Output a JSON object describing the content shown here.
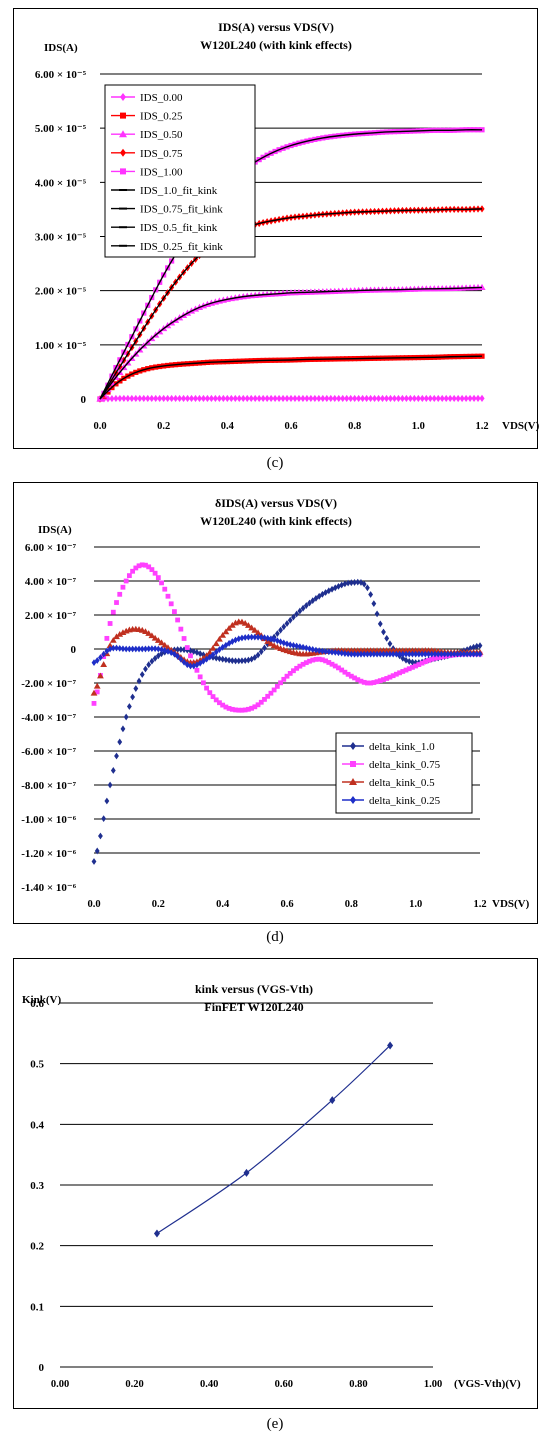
{
  "chart_data": [
    {
      "type": "line",
      "panel": "c",
      "title_line1": "IDS(A) versus VDS(V)",
      "title_line2": "W120L240 (with kink effects)",
      "ylabel": "IDS(A)",
      "xlabel": "VDS(V)",
      "x_ticks": [
        "0.0",
        "0.2",
        "0.4",
        "0.6",
        "0.8",
        "1.0",
        "1.2"
      ],
      "y_ticks": [
        "0",
        "1.00 × 10⁻⁵",
        "2.00 × 10⁻⁵",
        "3.00 × 10⁻⁵",
        "4.00 × 10⁻⁵",
        "5.00 × 10⁻⁵",
        "6.00 × 10⁻⁵"
      ],
      "xlim": [
        0,
        1.2
      ],
      "ylim": [
        0,
        6e-05
      ],
      "grid": "horizontal",
      "legend_position": "top-left",
      "x": [
        0.0,
        0.05,
        0.1,
        0.15,
        0.2,
        0.25,
        0.3,
        0.35,
        0.4,
        0.45,
        0.5,
        0.55,
        0.6,
        0.65,
        0.7,
        0.75,
        0.8,
        0.85,
        0.9,
        0.95,
        1.0,
        1.05,
        1.1,
        1.15,
        1.2
      ],
      "series": [
        {
          "name": "IDS_0.00",
          "color": "#ff33ff",
          "marker": "diamond",
          "values": [
            0,
            1e-07,
            1e-07,
            1e-07,
            1e-07,
            1e-07,
            1e-07,
            1e-07,
            1e-07,
            1e-07,
            1e-07,
            1e-07,
            1e-07,
            1e-07,
            1e-07,
            1e-07,
            1e-07,
            1e-07,
            1e-07,
            1e-07,
            1e-07,
            1e-07,
            1e-07,
            1e-07,
            1.2e-07
          ]
        },
        {
          "name": "IDS_0.25",
          "color": "#ff0000",
          "marker": "square",
          "values": [
            0,
            2.8e-06,
            4.6e-06,
            5.6e-06,
            6.1e-06,
            6.4e-06,
            6.6e-06,
            6.8e-06,
            6.9e-06,
            7e-06,
            7.1e-06,
            7.15e-06,
            7.2e-06,
            7.3e-06,
            7.35e-06,
            7.4e-06,
            7.45e-06,
            7.5e-06,
            7.55e-06,
            7.6e-06,
            7.65e-06,
            7.7e-06,
            7.8e-06,
            7.85e-06,
            7.9e-06
          ]
        },
        {
          "name": "IDS_0.50",
          "color": "#ff33ff",
          "marker": "triangle",
          "values": [
            0,
            4e-06,
            7.5e-06,
            1.05e-05,
            1.3e-05,
            1.5e-05,
            1.66e-05,
            1.77e-05,
            1.84e-05,
            1.89e-05,
            1.92e-05,
            1.94e-05,
            1.96e-05,
            1.97e-05,
            1.98e-05,
            1.99e-05,
            2e-05,
            2.01e-05,
            2.015e-05,
            2.02e-05,
            2.03e-05,
            2.035e-05,
            2.04e-05,
            2.05e-05,
            2.06e-05
          ]
        },
        {
          "name": "IDS_0.75",
          "color": "#ff0000",
          "marker": "diamond",
          "values": [
            0,
            4.8e-06,
            9.5e-06,
            1.42e-05,
            1.86e-05,
            2.25e-05,
            2.58e-05,
            2.83e-05,
            3.02e-05,
            3.15e-05,
            3.24e-05,
            3.3e-05,
            3.35e-05,
            3.38e-05,
            3.41e-05,
            3.43e-05,
            3.45e-05,
            3.46e-05,
            3.47e-05,
            3.48e-05,
            3.485e-05,
            3.49e-05,
            3.5e-05,
            3.5e-05,
            3.51e-05
          ]
        },
        {
          "name": "IDS_1.00",
          "color": "#ff33ff",
          "marker": "square",
          "values": [
            0,
            5.8e-06,
            1.15e-05,
            1.73e-05,
            2.29e-05,
            2.79e-05,
            3.23e-05,
            3.62e-05,
            3.95e-05,
            4.22e-05,
            4.42e-05,
            4.57e-05,
            4.68e-05,
            4.76e-05,
            4.82e-05,
            4.86e-05,
            4.89e-05,
            4.91e-05,
            4.93e-05,
            4.94e-05,
            4.95e-05,
            4.96e-05,
            4.96e-05,
            4.97e-05,
            4.97e-05
          ]
        },
        {
          "name": "IDS_1.0_fit_kink",
          "color": "#000000",
          "marker": "dash",
          "values": [
            0,
            5.8e-06,
            1.15e-05,
            1.73e-05,
            2.29e-05,
            2.79e-05,
            3.23e-05,
            3.62e-05,
            3.95e-05,
            4.22e-05,
            4.42e-05,
            4.57e-05,
            4.68e-05,
            4.76e-05,
            4.82e-05,
            4.86e-05,
            4.89e-05,
            4.91e-05,
            4.93e-05,
            4.94e-05,
            4.95e-05,
            4.96e-05,
            4.96e-05,
            4.97e-05,
            4.97e-05
          ]
        },
        {
          "name": "IDS_0.75_fit_kink",
          "color": "#000000",
          "marker": "dash",
          "values": [
            0,
            4.8e-06,
            9.5e-06,
            1.42e-05,
            1.86e-05,
            2.25e-05,
            2.58e-05,
            2.83e-05,
            3.02e-05,
            3.15e-05,
            3.24e-05,
            3.3e-05,
            3.35e-05,
            3.38e-05,
            3.41e-05,
            3.43e-05,
            3.45e-05,
            3.46e-05,
            3.47e-05,
            3.48e-05,
            3.485e-05,
            3.49e-05,
            3.5e-05,
            3.5e-05,
            3.51e-05
          ]
        },
        {
          "name": "IDS_0.5_fit_kink",
          "color": "#000000",
          "marker": "dash",
          "values": [
            0,
            4e-06,
            7.5e-06,
            1.05e-05,
            1.3e-05,
            1.5e-05,
            1.66e-05,
            1.77e-05,
            1.84e-05,
            1.89e-05,
            1.92e-05,
            1.94e-05,
            1.96e-05,
            1.97e-05,
            1.98e-05,
            1.99e-05,
            2e-05,
            2.01e-05,
            2.015e-05,
            2.02e-05,
            2.03e-05,
            2.035e-05,
            2.04e-05,
            2.05e-05,
            2.06e-05
          ]
        },
        {
          "name": "IDS_0.25_fit_kink",
          "color": "#000000",
          "marker": "dash",
          "values": [
            0,
            2.8e-06,
            4.6e-06,
            5.6e-06,
            6.1e-06,
            6.4e-06,
            6.6e-06,
            6.8e-06,
            6.9e-06,
            7e-06,
            7.1e-06,
            7.15e-06,
            7.2e-06,
            7.3e-06,
            7.35e-06,
            7.4e-06,
            7.45e-06,
            7.5e-06,
            7.55e-06,
            7.6e-06,
            7.65e-06,
            7.7e-06,
            7.8e-06,
            7.85e-06,
            7.9e-06
          ]
        }
      ],
      "caption": "(c)"
    },
    {
      "type": "scatter",
      "panel": "d",
      "title_line1": "δIDS(A) versus VDS(V)",
      "title_line2": "W120L240 (with kink effects)",
      "ylabel": "IDS(A)",
      "xlabel": "VDS(V)",
      "x_ticks": [
        "0.0",
        "0.2",
        "0.4",
        "0.6",
        "0.8",
        "1.0",
        "1.2"
      ],
      "y_ticks": [
        "6.00 × 10⁻⁷",
        "4.00 × 10⁻⁷",
        "2.00 × 10⁻⁷",
        "0",
        "-2.00 × 10⁻⁷",
        "-4.00 × 10⁻⁷",
        "-6.00 × 10⁻⁷",
        "-8.00 × 10⁻⁷",
        "-1.00 × 10⁻⁶",
        "-1.20 × 10⁻⁶",
        "-1.40 × 10⁻⁶"
      ],
      "xlim": [
        0,
        1.2
      ],
      "ylim": [
        -1.4e-06,
        6e-07
      ],
      "grid": "horizontal",
      "legend_position": "bottom-right",
      "x": [
        0.0,
        0.05,
        0.1,
        0.15,
        0.2,
        0.25,
        0.3,
        0.35,
        0.4,
        0.45,
        0.5,
        0.55,
        0.6,
        0.65,
        0.7,
        0.75,
        0.8,
        0.85,
        0.9,
        0.95,
        1.0,
        1.05,
        1.1,
        1.15,
        1.2
      ],
      "series": [
        {
          "name": "delta_kink_1.0",
          "color": "#1f2f8f",
          "marker": "diamond",
          "values": [
            -1.25e-06,
            -8e-07,
            -4e-07,
            -1.5e-07,
            -4e-08,
            -5e-09,
            -1e-08,
            -4e-08,
            -6e-08,
            -7e-08,
            -5e-08,
            5e-08,
            1.5e-07,
            2.4e-07,
            3.1e-07,
            3.6e-07,
            3.9e-07,
            3.6e-07,
            1e-07,
            -4e-08,
            -8e-08,
            -6e-08,
            -4e-08,
            -1e-08,
            2e-08
          ]
        },
        {
          "name": "delta_kink_0.75",
          "color": "#ff40ff",
          "marker": "square",
          "values": [
            -3.2e-07,
            1.5e-07,
            4e-07,
            4.95e-07,
            4.2e-07,
            2.2e-07,
            -4e-08,
            -2.3e-07,
            -3.3e-07,
            -3.6e-07,
            -3.4e-07,
            -2.6e-07,
            -1.6e-07,
            -9e-08,
            -6e-08,
            -1e-07,
            -1.6e-07,
            -2e-07,
            -1.8e-07,
            -1.4e-07,
            -1e-07,
            -6e-08,
            -4e-08,
            -3e-08,
            -3e-08
          ]
        },
        {
          "name": "delta_kink_0.5",
          "color": "#c03020",
          "marker": "triangle",
          "values": [
            -2.6e-07,
            2e-08,
            1.05e-07,
            1.1e-07,
            5e-08,
            -2e-08,
            -8e-08,
            -4e-08,
            8e-08,
            1.6e-07,
            1.1e-07,
            3e-08,
            -1e-08,
            -3e-08,
            -2e-08,
            -1e-08,
            -1e-08,
            -1e-08,
            -1e-08,
            -1e-08,
            -1e-08,
            -1e-08,
            -2e-08,
            -2e-08,
            -2e-08
          ]
        },
        {
          "name": "delta_kink_0.25",
          "color": "#1e2ec8",
          "marker": "diamond",
          "values": [
            -8e-08,
            0,
            0,
            0,
            0,
            -3e-08,
            -1e-07,
            -6e-08,
            1e-08,
            6e-08,
            7e-08,
            6e-08,
            3e-08,
            1e-08,
            -1e-08,
            -2e-08,
            -3e-08,
            -3e-08,
            -3e-08,
            -3e-08,
            -3e-08,
            -3e-08,
            -3e-08,
            -3e-08,
            -3e-08
          ]
        }
      ],
      "caption": "(d)"
    },
    {
      "type": "line",
      "panel": "e",
      "title_line1": "kink versus (VGS-Vth)",
      "title_line2": "FinFET W120L240",
      "ylabel": "Kink(V)",
      "xlabel": "(VGS-Vth)(V)",
      "x_ticks": [
        "0.00",
        "0.20",
        "0.40",
        "0.60",
        "0.80",
        "1.00"
      ],
      "y_ticks": [
        "0",
        "0.1",
        "0.2",
        "0.3",
        "0.4",
        "0.5",
        "0.6"
      ],
      "xlim": [
        0,
        1.0
      ],
      "ylim": [
        0,
        0.6
      ],
      "grid": "horizontal",
      "series": [
        {
          "name": "",
          "color": "#1f2f8f",
          "marker": "diamond",
          "x": [
            0.26,
            0.5,
            0.73,
            0.885
          ],
          "values": [
            0.22,
            0.32,
            0.44,
            0.53
          ]
        }
      ],
      "caption": "(e)"
    }
  ]
}
